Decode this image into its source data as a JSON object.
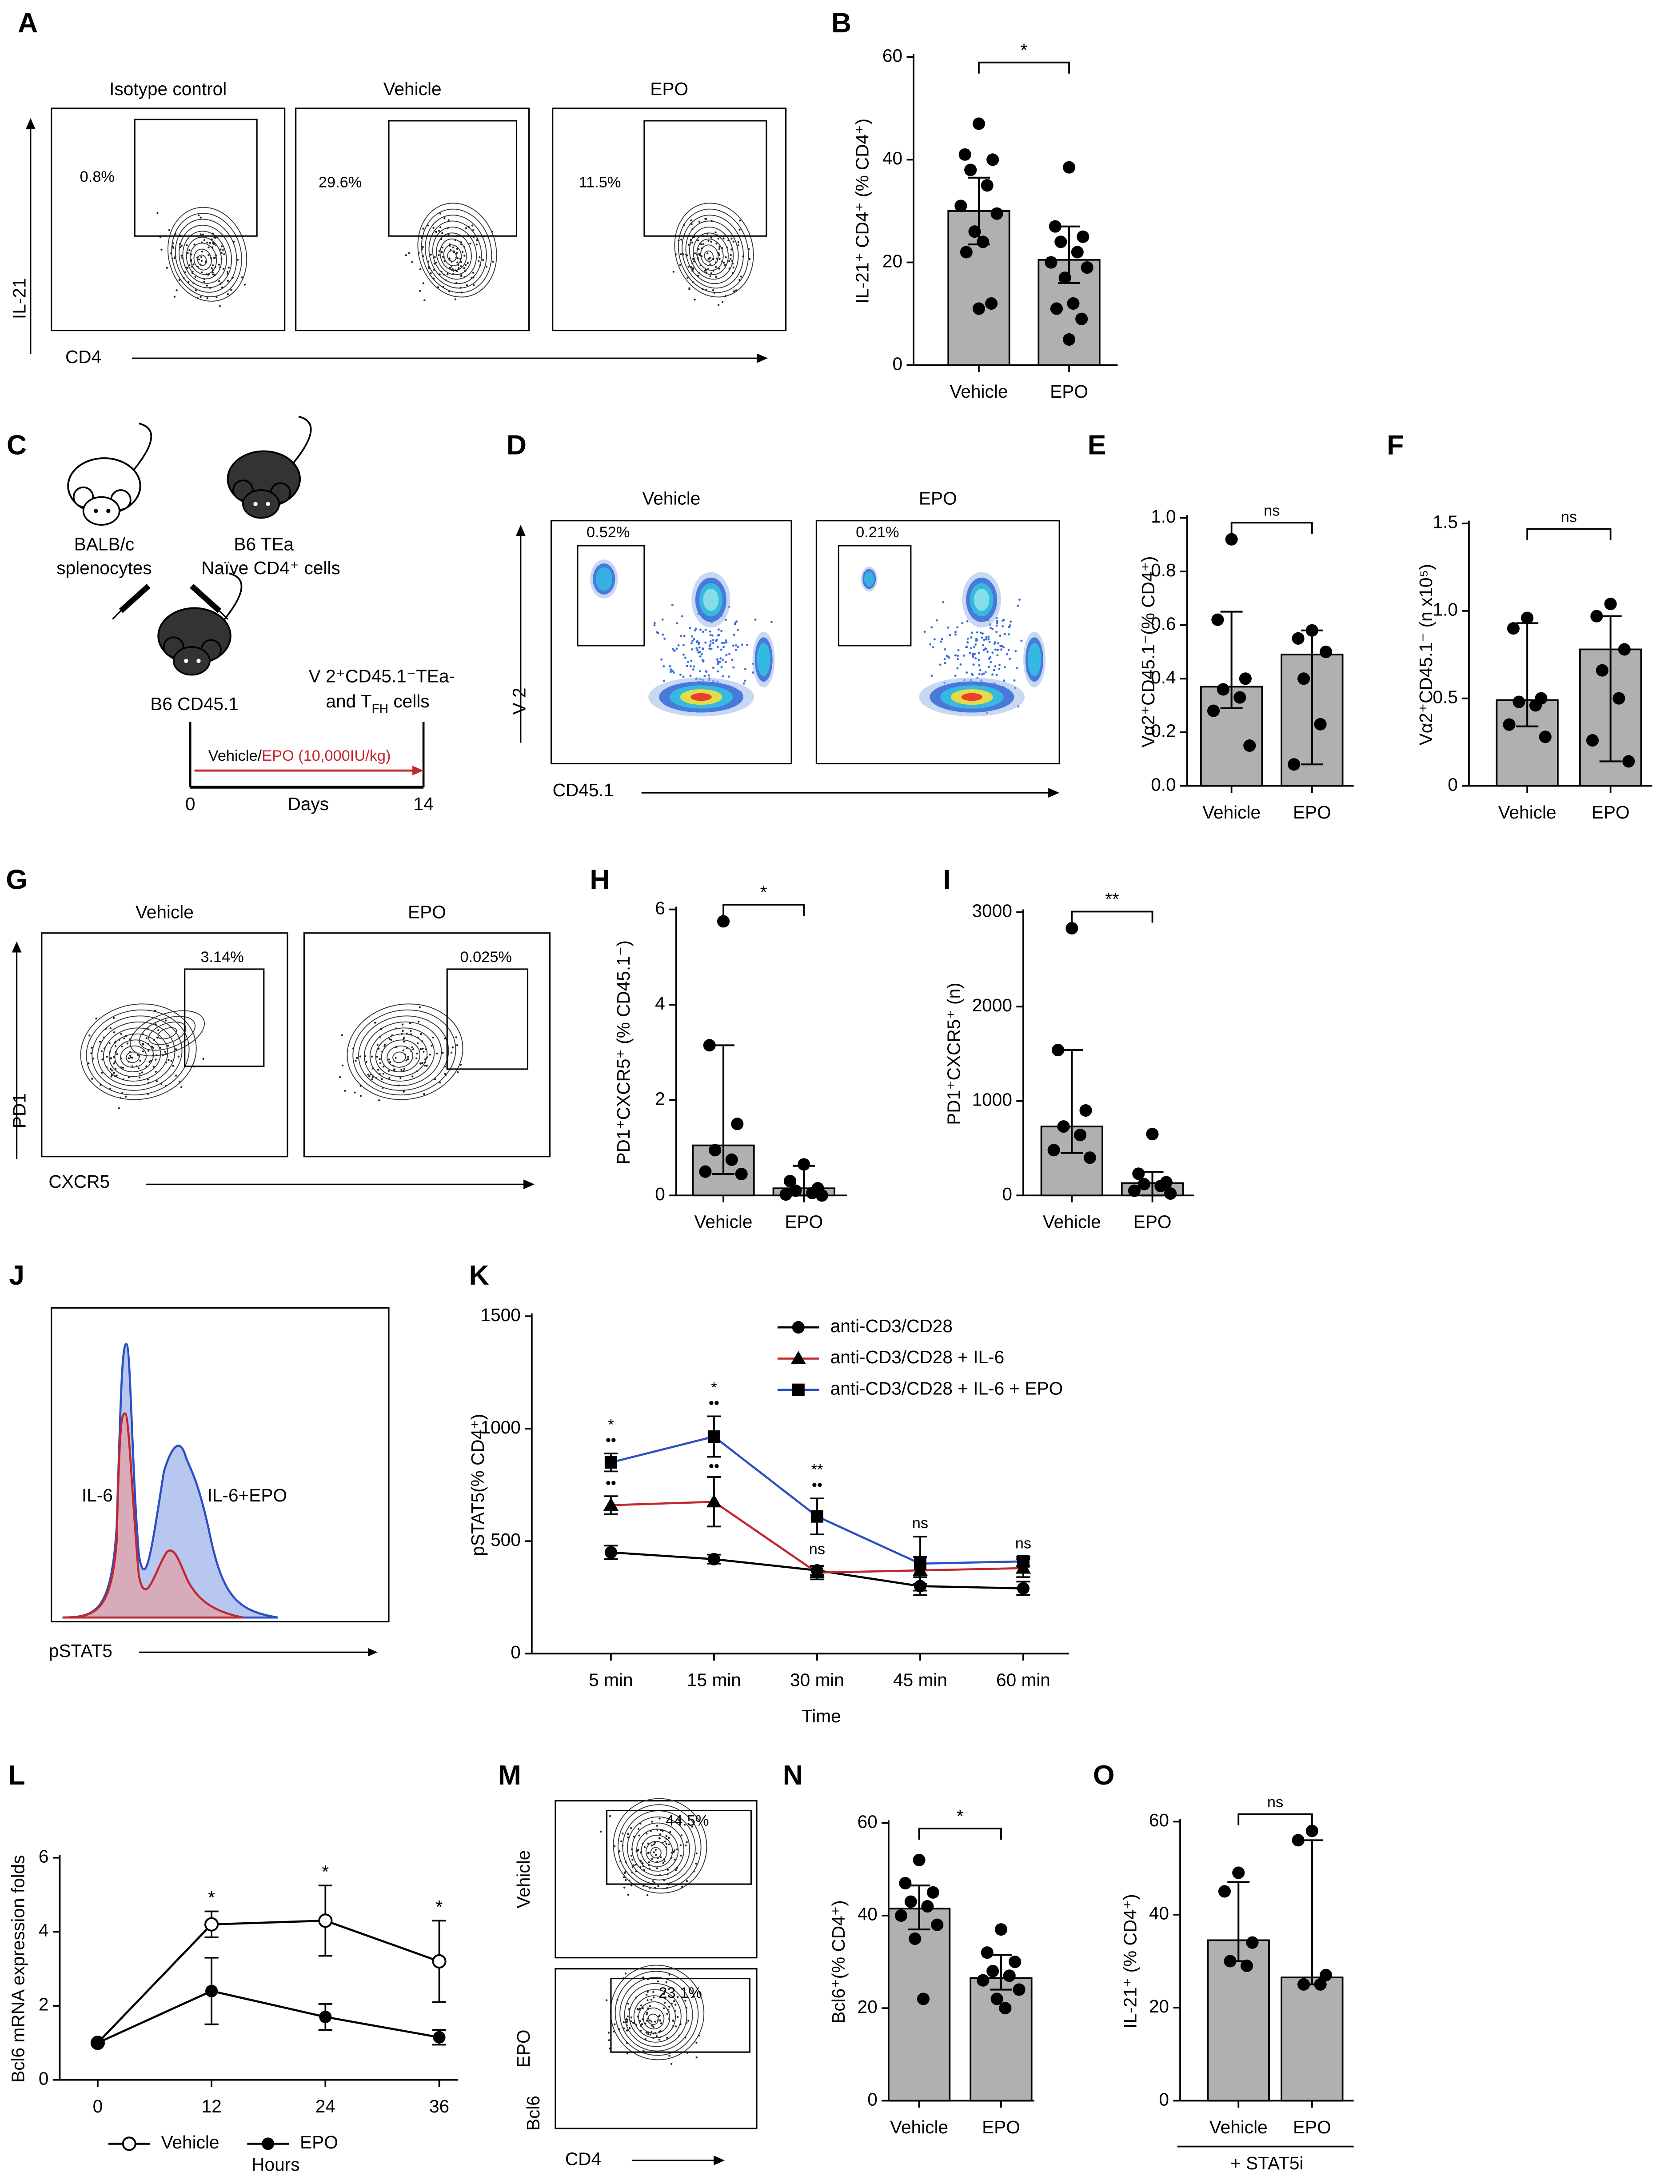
{
  "panel_labels": [
    "A",
    "B",
    "C",
    "D",
    "E",
    "F",
    "G",
    "H",
    "I",
    "J",
    "K",
    "L",
    "M",
    "N",
    "O"
  ],
  "flow": {
    "A": {
      "y_label": "IL-21",
      "x_label": "CD4",
      "plots": [
        {
          "title": "Isotype control",
          "gate": "0.8%"
        },
        {
          "title": "Vehicle",
          "gate": "29.6%"
        },
        {
          "title": "EPO",
          "gate": "11.5%"
        }
      ]
    },
    "D": {
      "y_label": "V 2",
      "x_label": "CD45.1",
      "plots": [
        {
          "title": "Vehicle",
          "gate": "0.52%"
        },
        {
          "title": "EPO",
          "gate": "0.21%"
        }
      ]
    },
    "G": {
      "y_label": "PD1",
      "x_label": "CXCR5",
      "plots": [
        {
          "title": "Vehicle",
          "gate": "3.14%"
        },
        {
          "title": "EPO",
          "gate": "0.025%"
        }
      ]
    },
    "M": {
      "y_label": "Bcl6",
      "x_label": "CD4",
      "plots": [
        {
          "title": "Vehicle",
          "gate": "44.5%"
        },
        {
          "title": "EPO",
          "gate": "23.1%"
        }
      ]
    }
  },
  "histogram": {
    "labels": [
      "IL-6",
      "IL-6+EPO"
    ],
    "x_label": "pSTAT5"
  },
  "diagram": {
    "donor1": [
      "BALB/c",
      "splenocytes"
    ],
    "donor2": [
      "B6 TEa",
      "Naïve CD4⁺ cells"
    ],
    "recipient": "B6 CD45.1",
    "readout": [
      "V 2⁺CD45.1⁻TEa-",
      [
        "and T",
        "FH",
        " cells"
      ]
    ],
    "treatment": [
      "Vehicle/",
      "EPO (10,000IU/kg)"
    ],
    "timeline": {
      "start": "0",
      "label": "Days",
      "end": "14"
    }
  },
  "chart_data": [
    {
      "type": "bar",
      "y_label": "IL-21⁺ CD4⁺ (% CD4⁺)",
      "categories": [
        "Vehicle",
        "EPO"
      ],
      "values": [
        30,
        20.5
      ],
      "lower": [
        23.5,
        16
      ],
      "upper": [
        36.5,
        27
      ],
      "points": [
        [
          47,
          41,
          40,
          38,
          35,
          31,
          29.5,
          26,
          24,
          22,
          12,
          11
        ],
        [
          38.5,
          27,
          25,
          24,
          22,
          20,
          19,
          17,
          12,
          11,
          9,
          5
        ]
      ],
      "color": "#b0b0b0",
      "ylim": [
        0,
        60
      ],
      "yticks": [
        0,
        20,
        40,
        60
      ],
      "significance": "*"
    },
    {
      "type": "bar",
      "y_label": "Vα2⁺CD45.1⁻(% CD4⁺)",
      "categories": [
        "Vehicle",
        "EPO"
      ],
      "values": [
        0.37,
        0.49
      ],
      "lower": [
        0.29,
        0.08
      ],
      "upper": [
        0.65,
        0.58
      ],
      "points": [
        [
          0.92,
          0.62,
          0.4,
          0.36,
          0.33,
          0.28,
          0.15
        ],
        [
          0.58,
          0.55,
          0.5,
          0.4,
          0.23,
          0.08
        ]
      ],
      "color": "#b0b0b0",
      "ylim": [
        0,
        1
      ],
      "yticks": [
        {
          "value": 0,
          "label": "0.0"
        },
        0.2,
        0.4,
        0.6,
        0.8,
        {
          "value": 1,
          "label": "1.0"
        }
      ],
      "significance": "ns"
    },
    {
      "type": "bar",
      "y_label": "Vα2⁺CD45.1⁻ (n x10⁵)",
      "categories": [
        "Vehicle",
        "EPO"
      ],
      "values": [
        0.49,
        0.78
      ],
      "lower": [
        0.34,
        0.14
      ],
      "upper": [
        0.93,
        0.97
      ],
      "points": [
        [
          0.96,
          0.9,
          0.5,
          0.48,
          0.46,
          0.35,
          0.28
        ],
        [
          1.04,
          0.97,
          0.78,
          0.66,
          0.5,
          0.26,
          0.14
        ]
      ],
      "color": "#b0b0b0",
      "ylim": [
        0,
        1.5
      ],
      "yticks": [
        0,
        0.5,
        {
          "value": 1,
          "label": "1.0"
        },
        1.5
      ],
      "significance": "ns"
    },
    {
      "type": "bar",
      "y_label": "PD1⁺CXCR5⁺ (% CD45.1⁻)",
      "categories": [
        "Vehicle",
        "EPO"
      ],
      "values": [
        1.05,
        0.15
      ],
      "lower": [
        0.45,
        0
      ],
      "upper": [
        3.15,
        0.62
      ],
      "points": [
        [
          5.75,
          3.15,
          1.5,
          0.95,
          0.75,
          0.5,
          0.45
        ],
        [
          0.65,
          0.3,
          0.15,
          0.1,
          0.05,
          0.02,
          0
        ]
      ],
      "color": "#b0b0b0",
      "ylim": [
        0,
        6
      ],
      "yticks": [
        0,
        2,
        4,
        6
      ],
      "significance": "*"
    },
    {
      "type": "bar",
      "y_label": "PD1⁺CXCR5⁺ (n)",
      "categories": [
        "Vehicle",
        "EPO"
      ],
      "values": [
        730,
        130
      ],
      "lower": [
        450,
        0
      ],
      "upper": [
        1540,
        250
      ],
      "points": [
        [
          2830,
          1540,
          900,
          730,
          640,
          480,
          400
        ],
        [
          650,
          230,
          140,
          120,
          100,
          50,
          20
        ]
      ],
      "color": "#b0b0b0",
      "ylim": [
        0,
        3000
      ],
      "yticks": [
        0,
        1000,
        2000,
        3000
      ],
      "significance": "**"
    },
    {
      "type": "line",
      "x_label": "Time",
      "y_label": "pSTAT5(% CD4⁺)",
      "categories": [
        "5 min",
        "15 min",
        "30 min",
        "45 min",
        "60 min"
      ],
      "ylim": [
        0,
        1500
      ],
      "yticks": [
        0,
        500,
        1000,
        1500
      ],
      "legend": "upper right",
      "marker_color": "#000000",
      "series": [
        {
          "name": "anti-CD3/CD28",
          "color": "#000000",
          "marker": "circle",
          "values": [
            450,
            420,
            370,
            300,
            290
          ],
          "errors": [
            30,
            20,
            20,
            40,
            30
          ]
        },
        {
          "name": "anti-CD3/CD28 + IL-6",
          "color": "#c0282d",
          "marker": "triangle",
          "values": [
            660,
            675,
            360,
            370,
            380
          ],
          "errors": [
            40,
            110,
            30,
            60,
            40
          ]
        },
        {
          "name": "anti-CD3/CD28 + IL-6 + EPO",
          "color": "#2b4fc4",
          "marker": "square",
          "values": [
            850,
            965,
            610,
            400,
            410
          ],
          "errors": [
            40,
            90,
            80,
            120,
            20
          ]
        }
      ],
      "annotations": [
        {
          "above": [
            "*",
            "••"
          ],
          "between": [
            "••"
          ]
        },
        {
          "above": [
            "*",
            "••"
          ],
          "between": [
            "••"
          ]
        },
        {
          "above": [
            "**",
            "••"
          ],
          "between": [
            "ns"
          ]
        },
        {
          "above": [
            "ns"
          ]
        },
        {
          "above": [
            "ns"
          ]
        }
      ]
    },
    {
      "type": "line",
      "x_label": "Hours",
      "y_label": "Bcl6 mRNA expression folds",
      "x": [
        0,
        12,
        24,
        36
      ],
      "xlim": [
        -4,
        38
      ],
      "xticks": [
        0,
        12,
        24,
        36
      ],
      "ylim": [
        0,
        6
      ],
      "yticks": [
        0,
        2,
        4,
        6
      ],
      "legend": "lower left",
      "marker_color": "#000000",
      "series": [
        {
          "name": "Vehicle",
          "color": "#000000",
          "marker": "open",
          "values": [
            1,
            4.2,
            4.3,
            3.2
          ],
          "errors": [
            0,
            0.35,
            0.95,
            1.1
          ]
        },
        {
          "name": "EPO",
          "color": "#000000",
          "marker": "filled",
          "values": [
            1,
            2.4,
            1.7,
            1.15
          ],
          "errors": [
            0,
            0.9,
            0.35,
            0.2
          ]
        }
      ],
      "annotations": [
        {
          "x": 12,
          "text": "*"
        },
        {
          "x": 24,
          "text": "*"
        },
        {
          "x": 36,
          "text": "*"
        }
      ]
    },
    {
      "type": "bar",
      "y_label": "Bcl6⁺(% CD4⁺)",
      "categories": [
        "Vehicle",
        "EPO"
      ],
      "values": [
        41.5,
        26.5
      ],
      "lower": [
        37,
        24
      ],
      "upper": [
        46.5,
        31.5
      ],
      "points": [
        [
          52,
          47,
          45,
          43,
          42,
          40,
          38,
          35,
          22
        ],
        [
          37,
          32,
          30,
          28,
          27,
          26,
          24,
          22,
          20
        ]
      ],
      "color": "#b0b0b0",
      "ylim": [
        0,
        60
      ],
      "yticks": [
        0,
        20,
        40,
        60
      ],
      "significance": "*"
    },
    {
      "type": "bar",
      "y_label": "IL-21⁺ (% CD4⁺)",
      "categories": [
        "Vehicle",
        "EPO"
      ],
      "values": [
        34.5,
        26.5
      ],
      "lower": [
        30,
        25
      ],
      "upper": [
        47,
        56
      ],
      "points": [
        [
          49,
          45,
          34,
          30,
          29
        ],
        [
          58,
          56,
          27,
          25,
          25
        ]
      ],
      "color": "#b0b0b0",
      "ylim": [
        0,
        60
      ],
      "yticks": [
        0,
        20,
        40,
        60
      ],
      "significance": "ns",
      "group_label": "+ STAT5i"
    }
  ]
}
